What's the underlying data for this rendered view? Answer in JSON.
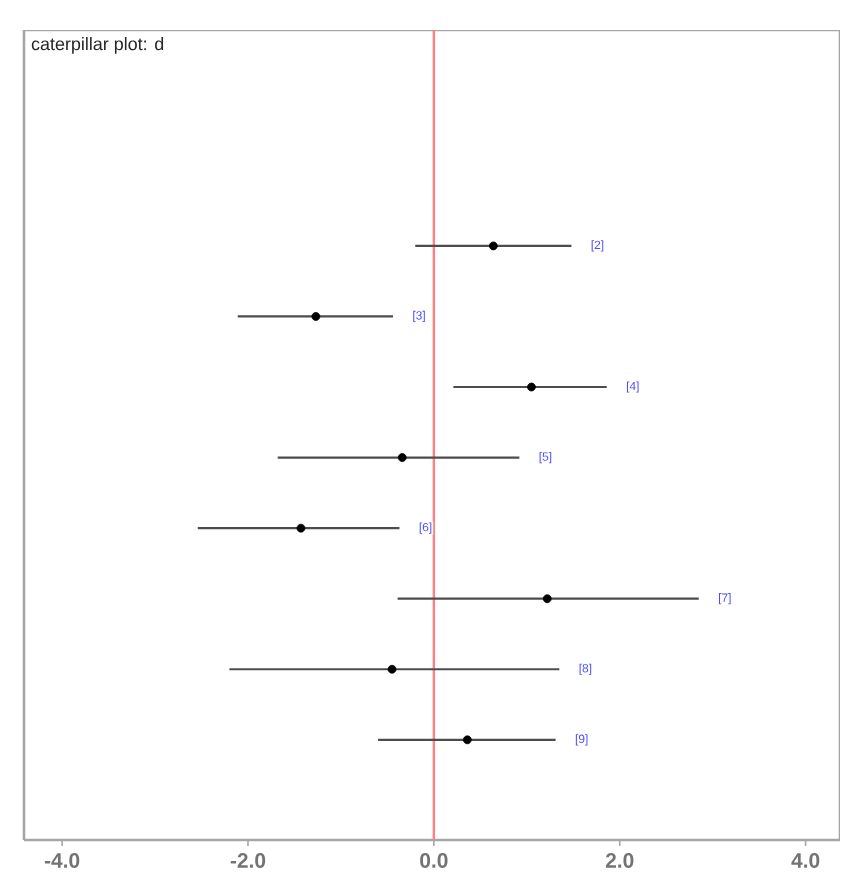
{
  "chart_data": {
    "type": "scatter",
    "orientation": "horizontal",
    "title": "caterpillar plot: d",
    "categories": [
      "[2]",
      "[3]",
      "[4]",
      "[5]",
      "[6]",
      "[7]",
      "[8]",
      "[9]"
    ],
    "values": [
      0.64,
      -1.27,
      1.05,
      -0.34,
      -1.43,
      1.22,
      -0.45,
      0.36
    ],
    "errors": [
      [
        -0.2,
        1.48
      ],
      [
        -2.11,
        -0.44
      ],
      [
        0.21,
        1.86
      ],
      [
        -1.68,
        0.92
      ],
      [
        -2.54,
        -0.37
      ],
      [
        -0.39,
        2.85
      ],
      [
        -2.2,
        1.35
      ],
      [
        -0.6,
        1.31
      ]
    ],
    "color": "#000000",
    "xlim": [
      -4.41,
      4.37
    ],
    "xticks": [
      {
        "value": -4,
        "label": "-4.0"
      },
      {
        "value": -2,
        "label": "-2.0"
      },
      {
        "value": 0,
        "label": "0.0"
      },
      {
        "value": 2,
        "label": "2.0"
      },
      {
        "value": 4,
        "label": "4.0"
      }
    ],
    "ref_lines": [
      {
        "axis": "x",
        "value": 0,
        "color": "#ff8080"
      }
    ],
    "tick_labels": "x"
  }
}
